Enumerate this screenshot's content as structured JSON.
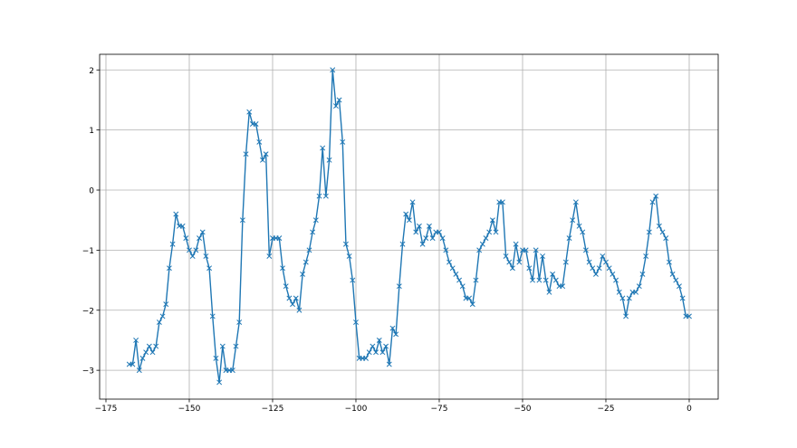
{
  "chart_data": {
    "type": "line",
    "marker": "x",
    "color": "#1f77b4",
    "grid": true,
    "xlim": [
      -176.9,
      8.7
    ],
    "ylim": [
      -3.48,
      2.26
    ],
    "xticks": [
      {
        "value": -175,
        "label": "−175"
      },
      {
        "value": -150,
        "label": "−150"
      },
      {
        "value": -125,
        "label": "−125"
      },
      {
        "value": -100,
        "label": "−100"
      },
      {
        "value": -75,
        "label": "−75"
      },
      {
        "value": -50,
        "label": "−50"
      },
      {
        "value": -25,
        "label": "−25"
      },
      0
    ],
    "yticks": [
      {
        "value": -3,
        "label": "−3"
      },
      {
        "value": -2,
        "label": "−2"
      },
      {
        "value": -1,
        "label": "−1"
      },
      0,
      1,
      2
    ],
    "x": [
      -168,
      -167,
      -166,
      -165,
      -164,
      -163,
      -162,
      -161,
      -160,
      -159,
      -158,
      -157,
      -156,
      -155,
      -154,
      -153,
      -152,
      -151,
      -150,
      -149,
      -148,
      -147,
      -146,
      -145,
      -144,
      -143,
      -142,
      -141,
      -140,
      -139,
      -138,
      -137,
      -136,
      -135,
      -134,
      -133,
      -132,
      -131,
      -130,
      -129,
      -128,
      -127,
      -126,
      -125,
      -124,
      -123,
      -122,
      -121,
      -120,
      -119,
      -118,
      -117,
      -116,
      -115,
      -114,
      -113,
      -112,
      -111,
      -110,
      -109,
      -108,
      -107,
      -106,
      -105,
      -104,
      -103,
      -102,
      -101,
      -100,
      -99,
      -98,
      -97,
      -96,
      -95,
      -94,
      -93,
      -92,
      -91,
      -90,
      -89,
      -88,
      -87,
      -86,
      -85,
      -84,
      -83,
      -82,
      -81,
      -80,
      -79,
      -78,
      -77,
      -76,
      -75,
      -74,
      -73,
      -72,
      -71,
      -70,
      -69,
      -68,
      -67,
      -66,
      -65,
      -64,
      -63,
      -62,
      -61,
      -60,
      -59,
      -58,
      -57,
      -56,
      -55,
      -54,
      -53,
      -52,
      -51,
      -50,
      -49,
      -48,
      -47,
      -46,
      -45,
      -44,
      -43,
      -42,
      -41,
      -40,
      -39,
      -38,
      -37,
      -36,
      -35,
      -34,
      -33,
      -32,
      -31,
      -30,
      -29,
      -28,
      -27,
      -26,
      -25,
      -24,
      -23,
      -22,
      -21,
      -20,
      -19,
      -18,
      -17,
      -16,
      -15,
      -14,
      -13,
      -12,
      -11,
      -10,
      -9,
      -8,
      -7,
      -6,
      -5,
      -4,
      -3,
      -2,
      -1,
      0
    ],
    "values": [
      -2.9,
      -2.9,
      -2.5,
      -3.0,
      -2.8,
      -2.7,
      -2.6,
      -2.7,
      -2.6,
      -2.2,
      -2.1,
      -1.9,
      -1.3,
      -0.9,
      -0.4,
      -0.6,
      -0.6,
      -0.8,
      -1.0,
      -1.1,
      -1.0,
      -0.8,
      -0.7,
      -1.1,
      -1.3,
      -2.1,
      -2.8,
      -3.2,
      -2.6,
      -3.0,
      -3.0,
      -3.0,
      -2.6,
      -2.2,
      -0.5,
      0.6,
      1.3,
      1.1,
      1.1,
      0.8,
      0.5,
      0.6,
      -1.1,
      -0.8,
      -0.8,
      -0.8,
      -1.3,
      -1.6,
      -1.8,
      -1.9,
      -1.8,
      -2.0,
      -1.4,
      -1.2,
      -1.0,
      -0.7,
      -0.5,
      -0.1,
      0.7,
      -0.1,
      0.5,
      2.0,
      1.4,
      1.5,
      0.8,
      -0.9,
      -1.1,
      -1.5,
      -2.2,
      -2.8,
      -2.8,
      -2.8,
      -2.7,
      -2.6,
      -2.7,
      -2.5,
      -2.7,
      -2.6,
      -2.9,
      -2.3,
      -2.4,
      -1.6,
      -0.9,
      -0.4,
      -0.5,
      -0.2,
      -0.7,
      -0.6,
      -0.9,
      -0.8,
      -0.6,
      -0.8,
      -0.7,
      -0.7,
      -0.8,
      -1.0,
      -1.2,
      -1.3,
      -1.4,
      -1.5,
      -1.6,
      -1.8,
      -1.8,
      -1.9,
      -1.5,
      -1.0,
      -0.9,
      -0.8,
      -0.7,
      -0.5,
      -0.7,
      -0.2,
      -0.2,
      -1.1,
      -1.2,
      -1.3,
      -0.9,
      -1.2,
      -1.0,
      -1.0,
      -1.3,
      -1.5,
      -1.0,
      -1.5,
      -1.1,
      -1.5,
      -1.7,
      -1.4,
      -1.5,
      -1.6,
      -1.6,
      -1.2,
      -0.8,
      -0.5,
      -0.2,
      -0.6,
      -0.7,
      -1.0,
      -1.2,
      -1.3,
      -1.4,
      -1.3,
      -1.1,
      -1.2,
      -1.3,
      -1.4,
      -1.5,
      -1.7,
      -1.8,
      -2.1,
      -1.8,
      -1.7,
      -1.7,
      -1.6,
      -1.4,
      -1.1,
      -0.7,
      -0.2,
      -0.1,
      -0.6,
      -0.7,
      -0.8,
      -1.2,
      -1.4,
      -1.5,
      -1.6,
      -1.8,
      -2.1,
      -2.1
    ]
  }
}
